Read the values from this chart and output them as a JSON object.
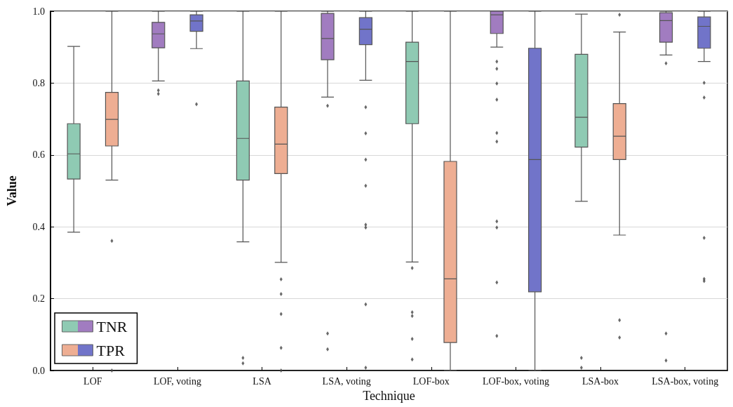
{
  "chart_data": {
    "type": "box",
    "xlabel": "Technique",
    "ylabel": "Value",
    "categories": [
      "LOF",
      "LOF, voting",
      "LSA",
      "LSA, voting",
      "LOF-box",
      "LOF-box, voting",
      "LSA-box",
      "LSA-box, voting"
    ],
    "ylim": [
      0,
      1
    ],
    "yticks": [
      {
        "value": 0,
        "label": "0.0"
      },
      0.2,
      0.4,
      0.6,
      0.8,
      {
        "value": 1,
        "label": "1.0"
      }
    ],
    "grid": "y",
    "legend": "bottom left",
    "series": [
      {
        "name": "TNR",
        "colors": [
          "#8fcab3",
          "#a17cc0",
          "#8fcab3",
          "#a17cc0",
          "#8fcab3",
          "#a17cc0",
          "#8fcab3",
          "#a17cc0"
        ],
        "boxes": [
          {
            "low": 0.385,
            "q1": 0.533,
            "median": 0.603,
            "q3": 0.687,
            "high": 0.902
          },
          {
            "low": 0.806,
            "q1": 0.898,
            "median": 0.937,
            "q3": 0.969,
            "high": 1.0,
            "outliers": [
              0.78,
              0.77
            ]
          },
          {
            "low": 0.358,
            "q1": 0.53,
            "median": 0.646,
            "q3": 0.806,
            "high": 1.0,
            "outliers": [
              0.035,
              0.02
            ]
          },
          {
            "low": 0.761,
            "q1": 0.865,
            "median": 0.924,
            "q3": 0.994,
            "high": 1.0,
            "outliers": [
              0.737,
              0.103,
              0.059
            ]
          },
          {
            "low": 0.302,
            "q1": 0.687,
            "median": 0.86,
            "q3": 0.914,
            "high": 1.0,
            "outliers": [
              0.285,
              0.162,
              0.152,
              0.088,
              0.031
            ]
          },
          {
            "low": 0.9,
            "q1": 0.938,
            "median": 0.99,
            "q3": 1.0,
            "high": 1.0,
            "outliers": [
              0.86,
              0.84,
              0.799,
              0.754,
              0.661,
              0.637,
              0.415,
              0.398,
              0.245,
              0.096
            ]
          },
          {
            "low": 0.471,
            "q1": 0.622,
            "median": 0.705,
            "q3": 0.88,
            "high": 0.992,
            "outliers": [
              0.035,
              0.008
            ]
          },
          {
            "low": 0.878,
            "q1": 0.914,
            "median": 0.974,
            "q3": 0.996,
            "high": 1.0,
            "outliers": [
              0.855,
              0.103,
              0.028
            ]
          }
        ]
      },
      {
        "name": "TPR",
        "colors": [
          "#eeae93",
          "#7174c9",
          "#eeae93",
          "#7174c9",
          "#eeae93",
          "#7174c9",
          "#eeae93",
          "#7174c9"
        ],
        "boxes": [
          {
            "low": 0.53,
            "q1": 0.625,
            "median": 0.699,
            "q3": 0.774,
            "high": 1.0,
            "outliers": [
              0.361,
              0.0
            ]
          },
          {
            "low": 0.896,
            "q1": 0.944,
            "median": 0.973,
            "q3": 0.99,
            "high": 1.0,
            "outliers": [
              0.741
            ]
          },
          {
            "low": 0.301,
            "q1": 0.548,
            "median": 0.63,
            "q3": 0.733,
            "high": 1.0,
            "outliers": [
              0.254,
              0.213,
              0.157,
              0.063,
              0.0
            ]
          },
          {
            "low": 0.808,
            "q1": 0.907,
            "median": 0.95,
            "q3": 0.982,
            "high": 1.0,
            "outliers": [
              0.733,
              0.66,
              0.587,
              0.514,
              0.406,
              0.398,
              0.184,
              0.008
            ]
          },
          {
            "low": 0.0,
            "q1": 0.078,
            "median": 0.255,
            "q3": 0.582,
            "high": 1.0
          },
          {
            "low": 0.0,
            "q1": 0.219,
            "median": 0.587,
            "q3": 0.897,
            "high": 1.0
          },
          {
            "low": 0.377,
            "q1": 0.587,
            "median": 0.652,
            "q3": 0.743,
            "high": 0.942,
            "outliers": [
              0.99,
              0.14,
              0.092
            ]
          },
          {
            "low": 0.86,
            "q1": 0.897,
            "median": 0.958,
            "q3": 0.984,
            "high": 1.0,
            "outliers": [
              0.801,
              0.76,
              0.369,
              0.255,
              0.249
            ]
          }
        ]
      }
    ]
  }
}
